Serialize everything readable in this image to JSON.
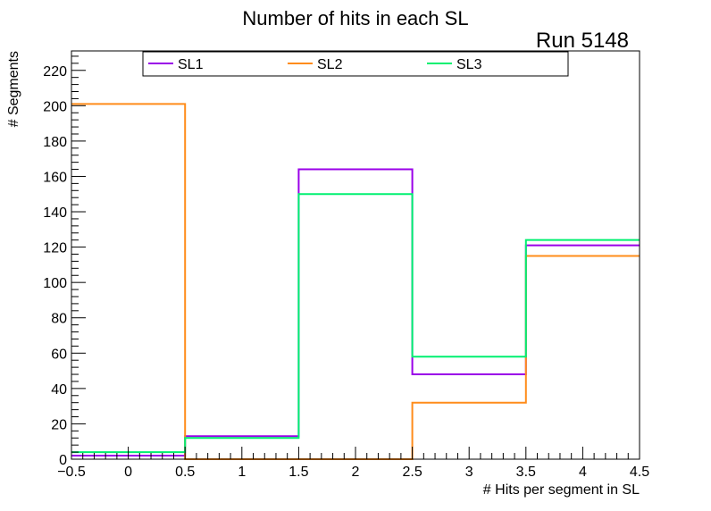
{
  "chart_data": {
    "type": "histogram-step",
    "title": "Number of hits in each SL",
    "annotation": "Run 5148",
    "xlabel": "# Hits per segment in SL",
    "ylabel": "# Segments",
    "xlim": [
      -0.5,
      4.5
    ],
    "ylim": [
      0,
      231
    ],
    "bin_edges": [
      -0.5,
      0.5,
      1.5,
      2.5,
      3.5,
      4.5
    ],
    "x_major_ticks": [
      -0.5,
      0,
      0.5,
      1,
      1.5,
      2,
      2.5,
      3,
      3.5,
      4,
      4.5
    ],
    "x_tick_labels": [
      "−0.5",
      "0",
      "0.5",
      "1",
      "1.5",
      "2",
      "2.5",
      "3",
      "3.5",
      "4",
      "4.5"
    ],
    "y_major_ticks": [
      0,
      20,
      40,
      60,
      80,
      100,
      120,
      140,
      160,
      180,
      200,
      220
    ],
    "y_tick_labels": [
      "0",
      "20",
      "40",
      "60",
      "80",
      "100",
      "120",
      "140",
      "160",
      "180",
      "200",
      "220"
    ],
    "grid": false,
    "legend_position": "top",
    "series": [
      {
        "name": "SL1",
        "color": "#9a00e8",
        "values": [
          2,
          13,
          164,
          48,
          121
        ]
      },
      {
        "name": "SL2",
        "color": "#ff8c1a",
        "values": [
          201,
          0,
          0,
          32,
          115
        ]
      },
      {
        "name": "SL3",
        "color": "#00f070",
        "values": [
          4,
          12,
          150,
          58,
          124
        ]
      }
    ]
  }
}
